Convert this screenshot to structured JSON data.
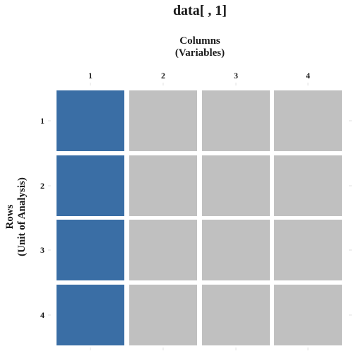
{
  "title": "data[ , 1]",
  "col_axis": {
    "line1": "Columns",
    "line2": "(Variables)"
  },
  "row_axis": {
    "line1": "Rows",
    "line2": "(Unit of Analysis)"
  },
  "columns": [
    "1",
    "2",
    "3",
    "4"
  ],
  "rows": [
    "1",
    "2",
    "3",
    "4"
  ],
  "selected_column": "1",
  "colors": {
    "selected": "#3a6ea5",
    "unselected": "#c0c0c0",
    "tick": "#e0e0e0",
    "text": "#1a1a1a"
  }
}
